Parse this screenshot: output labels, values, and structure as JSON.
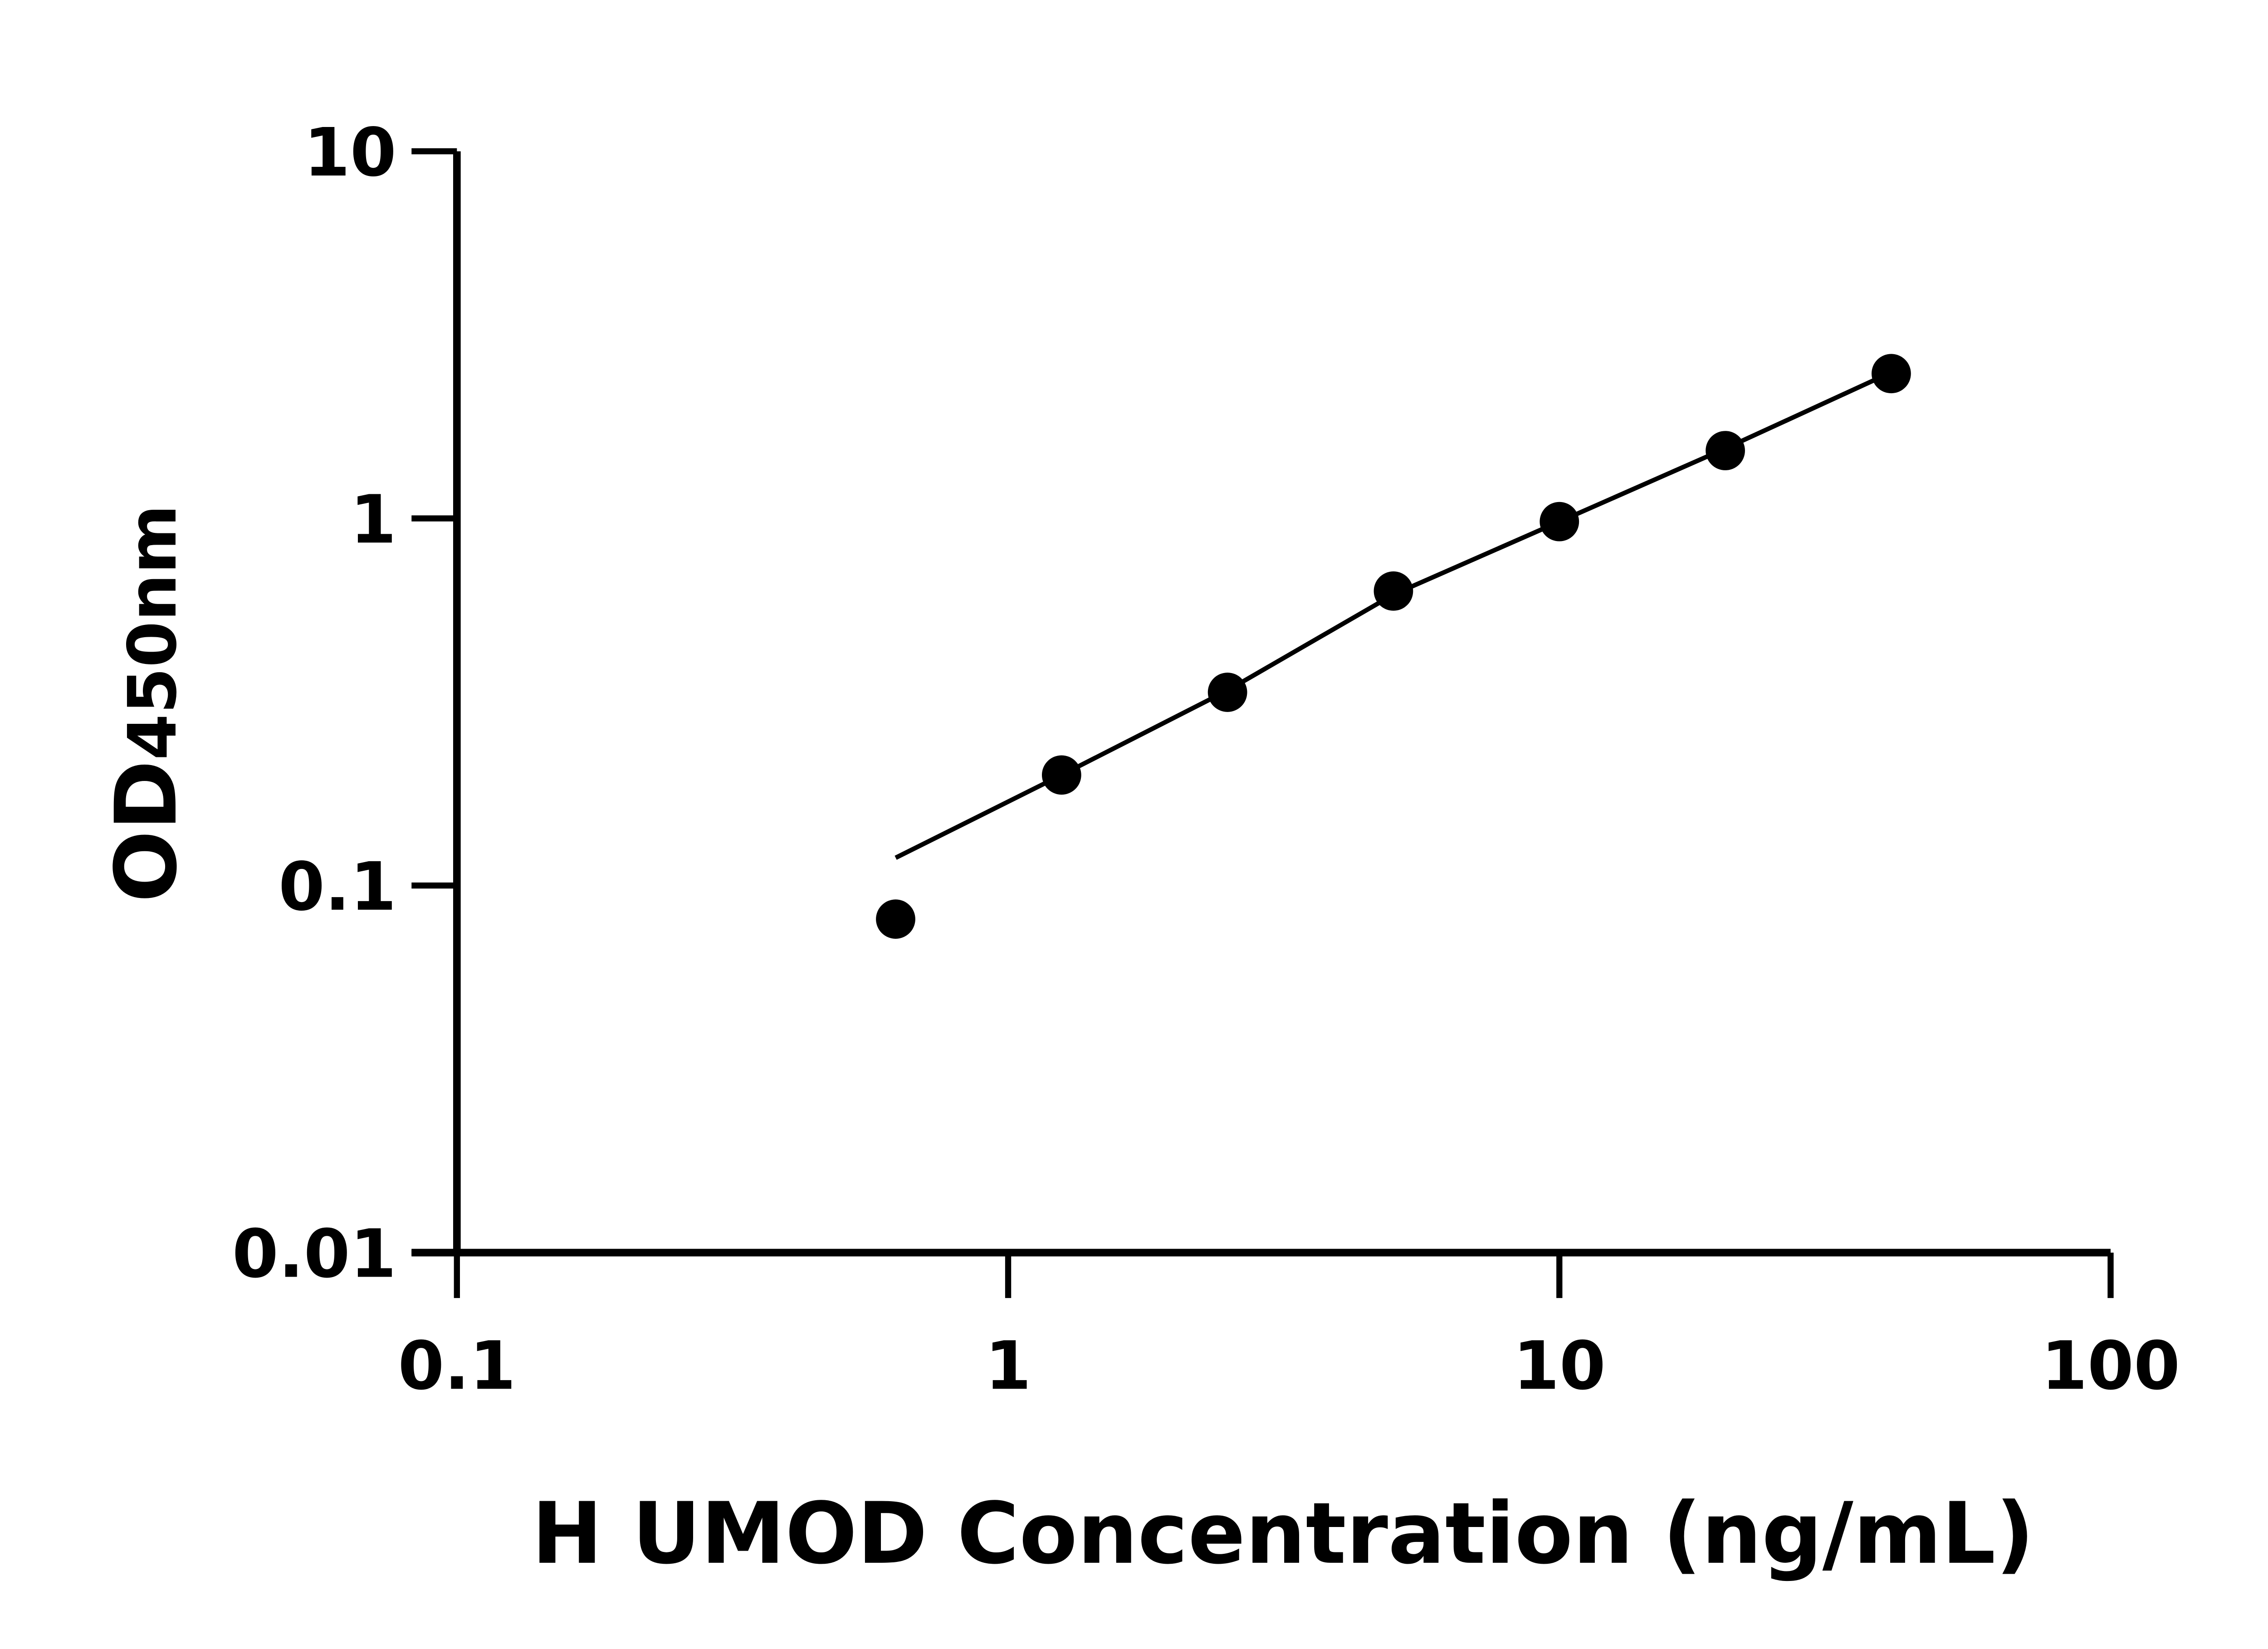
{
  "chart_data": {
    "type": "scatter",
    "title": "",
    "xlabel": "H UMOD Concentration (ng/mL)",
    "ylabel": {
      "main": "OD",
      "sub": "450nm"
    },
    "x_scale": "log",
    "y_scale": "log",
    "xlim": [
      0.1,
      100
    ],
    "ylim": [
      0.01,
      10
    ],
    "x_ticks": [
      "0.1",
      "1",
      "10",
      "100"
    ],
    "y_ticks": [
      "0.01",
      "0.1",
      "1",
      "10"
    ],
    "grid": false,
    "legend": "none",
    "points": {
      "x": [
        0.625,
        1.25,
        2.5,
        5,
        10,
        20,
        40
      ],
      "y": [
        0.081,
        0.2,
        0.336,
        0.634,
        0.98,
        1.53,
        2.48
      ]
    },
    "fit_curve": {
      "x": [
        0.625,
        1.25,
        2.5,
        5,
        10,
        20,
        40
      ],
      "y": [
        0.119,
        0.2,
        0.34,
        0.62,
        0.98,
        1.55,
        2.5
      ]
    },
    "colors": {
      "marks": "#000000",
      "background": "#ffffff"
    }
  }
}
